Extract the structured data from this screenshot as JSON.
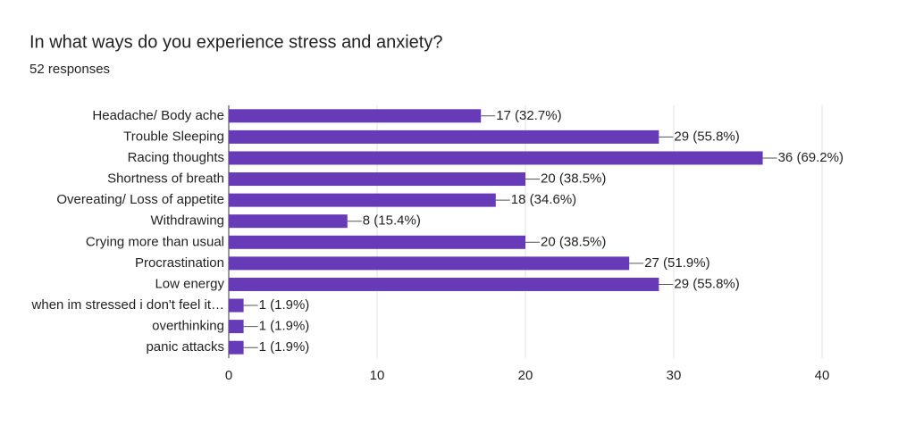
{
  "chart_data": {
    "type": "bar",
    "orientation": "horizontal",
    "title": "In what ways do you experience stress and anxiety?",
    "subtitle": "52 responses",
    "categories": [
      "Headache/ Body ache",
      "Trouble Sleeping",
      "Racing thoughts",
      "Shortness of breath",
      "Overeating/ Loss of appetite",
      "Withdrawing",
      "Crying more than usual",
      "Procrastination",
      "Low energy",
      "when im stressed i don't feel it…",
      "overthinking",
      "panic attacks"
    ],
    "values": [
      17,
      29,
      36,
      20,
      18,
      8,
      20,
      27,
      29,
      1,
      1,
      1
    ],
    "value_labels": [
      "17 (32.7%)",
      "29 (55.8%)",
      "36 (69.2%)",
      "20 (38.5%)",
      "18 (34.6%)",
      "8 (15.4%)",
      "20 (38.5%)",
      "27 (51.9%)",
      "29 (55.8%)",
      "1 (1.9%)",
      "1 (1.9%)",
      "1 (1.9%)"
    ],
    "color": "#673ab7",
    "xlim": [
      0,
      40
    ],
    "xticks": [
      0,
      10,
      20,
      30,
      40
    ],
    "grid": true
  }
}
